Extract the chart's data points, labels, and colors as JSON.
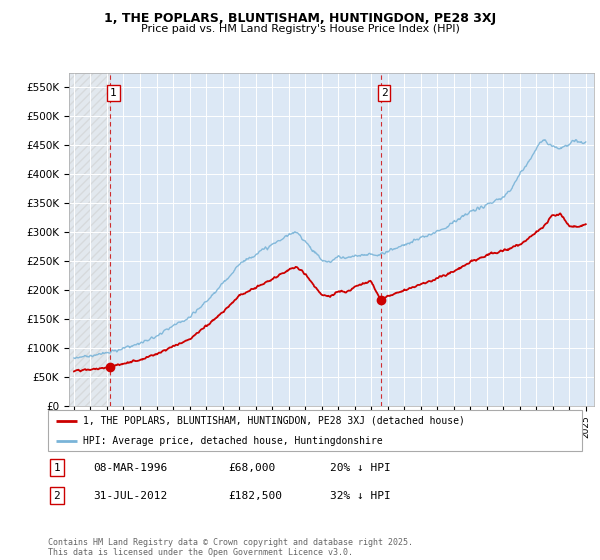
{
  "title1": "1, THE POPLARS, BLUNTISHAM, HUNTINGDON, PE28 3XJ",
  "title2": "Price paid vs. HM Land Registry's House Price Index (HPI)",
  "ylim": [
    0,
    575000
  ],
  "yticks": [
    0,
    50000,
    100000,
    150000,
    200000,
    250000,
    300000,
    350000,
    400000,
    450000,
    500000,
    550000
  ],
  "ytick_labels": [
    "£0",
    "£50K",
    "£100K",
    "£150K",
    "£200K",
    "£250K",
    "£300K",
    "£350K",
    "£400K",
    "£450K",
    "£500K",
    "£550K"
  ],
  "xlim_start": 1993.7,
  "xlim_end": 2025.5,
  "sale1_year": 1996.19,
  "sale1_price": 68000,
  "sale2_year": 2012.58,
  "sale2_price": 182500,
  "hpi_color": "#7ab4d8",
  "price_color": "#cc0000",
  "plot_bg": "#dce8f5",
  "legend_label1": "1, THE POPLARS, BLUNTISHAM, HUNTINGDON, PE28 3XJ (detached house)",
  "legend_label2": "HPI: Average price, detached house, Huntingdonshire",
  "table_row1": [
    "1",
    "08-MAR-1996",
    "£68,000",
    "20% ↓ HPI"
  ],
  "table_row2": [
    "2",
    "31-JUL-2012",
    "£182,500",
    "32% ↓ HPI"
  ],
  "footer": "Contains HM Land Registry data © Crown copyright and database right 2025.\nThis data is licensed under the Open Government Licence v3.0."
}
